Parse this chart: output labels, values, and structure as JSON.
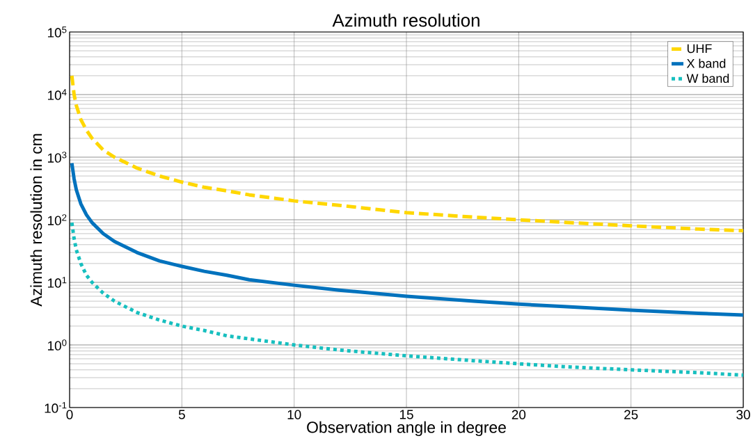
{
  "chart_data": {
    "type": "line",
    "title": "Azimuth resolution",
    "xlabel": "Observation angle in degree",
    "ylabel": "Azimuth resolution in cm",
    "x": [
      0.1,
      0.2,
      0.3,
      0.5,
      0.75,
      1,
      1.5,
      2,
      3,
      4,
      5,
      6,
      7,
      8,
      10,
      12,
      15,
      18,
      20,
      22,
      25,
      28,
      30
    ],
    "series": [
      {
        "name": "UHF",
        "color": "#ffd700",
        "line_style": "dashed",
        "values": [
          20000,
          10000,
          6700,
          4000,
          2700,
          2000,
          1300,
          1000,
          670,
          500,
          400,
          330,
          290,
          250,
          200,
          170,
          130,
          110,
          100,
          91,
          80,
          71,
          67
        ]
      },
      {
        "name": "X band",
        "color": "#0072bd",
        "line_style": "solid",
        "values": [
          800,
          450,
          300,
          180,
          120,
          90,
          60,
          45,
          30,
          22,
          18,
          15,
          13,
          11,
          9,
          7.5,
          6,
          5,
          4.5,
          4.1,
          3.6,
          3.2,
          3
        ]
      },
      {
        "name": "W band",
        "color": "#17bfbf",
        "line_style": "dotted",
        "values": [
          90,
          50,
          33,
          20,
          13,
          10,
          6.7,
          5,
          3.3,
          2.5,
          2,
          1.7,
          1.4,
          1.25,
          1,
          0.83,
          0.67,
          0.56,
          0.5,
          0.45,
          0.4,
          0.36,
          0.33
        ]
      }
    ],
    "log": "y",
    "xlim": [
      0,
      30
    ],
    "ylim": [
      0.1,
      100000
    ],
    "xticks": [
      0,
      5,
      10,
      15,
      20,
      25,
      30
    ],
    "yticks": [
      {
        "value": 0.1,
        "label": "10$^{-1}$"
      },
      {
        "value": 1,
        "label": "10$^{0}$"
      },
      {
        "value": 10,
        "label": "10$^{1}$"
      },
      {
        "value": 100,
        "label": "10$^{2}$"
      },
      {
        "value": 1000,
        "label": "10$^{3}$"
      },
      {
        "value": 10000,
        "label": "10$^{4}$"
      },
      {
        "value": 100000,
        "label": "10$^{5}$"
      }
    ],
    "grid": true,
    "legend": "top right",
    "marker": "none"
  }
}
